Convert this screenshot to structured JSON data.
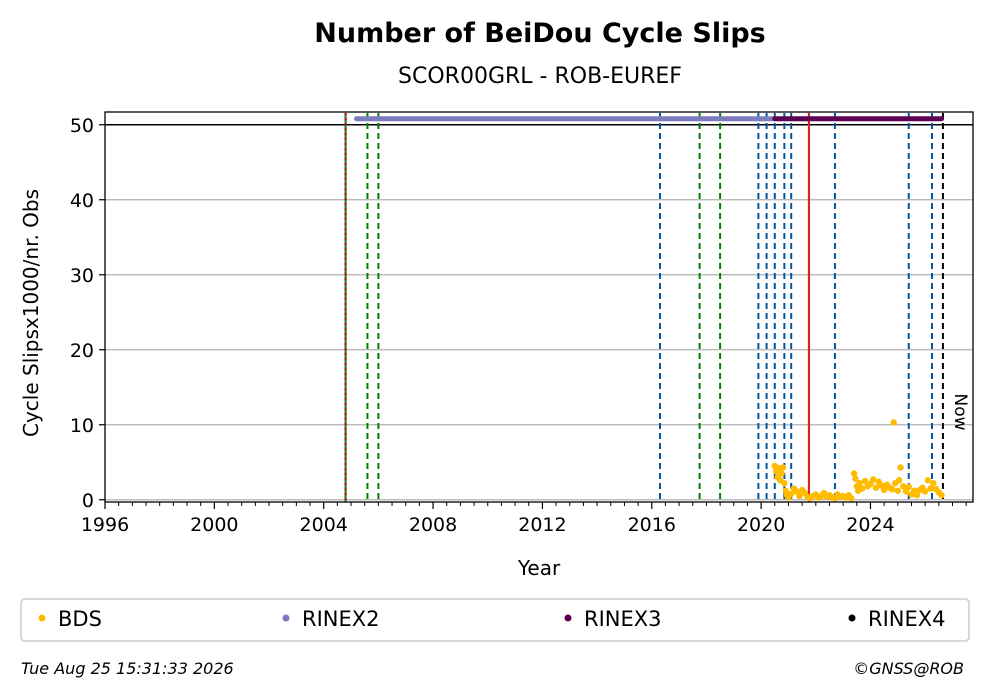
{
  "chart_data": {
    "type": "scatter",
    "title": "Number of BeiDou Cycle Slips",
    "subtitle": "SCOR00GRL - ROB-EUREF",
    "xlabel": "Year",
    "ylabel": "Cycle Slipsx1000/nr. Obs",
    "xlim": [
      1996.0,
      2027.75
    ],
    "ylim": [
      -0.3,
      51.7
    ],
    "x_ticks": [
      1996,
      2000,
      2004,
      2008,
      2012,
      2016,
      2020,
      2024
    ],
    "y_ticks": [
      0,
      10,
      20,
      30,
      40,
      50
    ],
    "grid": "horizontal",
    "reference_line_y": 50,
    "rinex_bars": [
      {
        "name": "RINEX2",
        "x_start": 2005.2,
        "x_end": 2020.5,
        "y": 50.8,
        "color": "#7b7bbd"
      },
      {
        "name": "RINEX3",
        "x_start": 2020.5,
        "x_end": 2026.6,
        "y": 50.8,
        "color": "#5c0054"
      }
    ],
    "event_lines": [
      {
        "x": 2004.8,
        "color": "#2e7d32",
        "style": "solid"
      },
      {
        "x": 2004.8,
        "color": "#cc0000",
        "style": "dotted"
      },
      {
        "x": 2005.6,
        "color": "#008000",
        "style": "dashed"
      },
      {
        "x": 2006.0,
        "color": "#008000",
        "style": "dashed"
      },
      {
        "x": 2016.3,
        "color": "#0055a5",
        "style": "dashed"
      },
      {
        "x": 2017.75,
        "color": "#008000",
        "style": "dashed"
      },
      {
        "x": 2018.5,
        "color": "#008000",
        "style": "dashed"
      },
      {
        "x": 2019.9,
        "color": "#0055a5",
        "style": "dashed"
      },
      {
        "x": 2020.2,
        "color": "#0055a5",
        "style": "dashed"
      },
      {
        "x": 2020.5,
        "color": "#0055a5",
        "style": "dashed"
      },
      {
        "x": 2020.85,
        "color": "#0055a5",
        "style": "dashed"
      },
      {
        "x": 2021.1,
        "color": "#0055a5",
        "style": "dashed"
      },
      {
        "x": 2021.75,
        "color": "#dd2222",
        "style": "solid"
      },
      {
        "x": 2022.7,
        "color": "#0055a5",
        "style": "dashed"
      },
      {
        "x": 2025.4,
        "color": "#0055a5",
        "style": "dashed"
      },
      {
        "x": 2026.25,
        "color": "#0055a5",
        "style": "dashed"
      },
      {
        "x": 2026.65,
        "color": "#000000",
        "style": "dashed"
      }
    ],
    "now_label": "Now",
    "now_x": 2026.65,
    "series": [
      {
        "name": "BDS",
        "color": "#ffbb00",
        "points": [
          [
            2020.5,
            4.5
          ],
          [
            2020.55,
            3.8
          ],
          [
            2020.6,
            3.0
          ],
          [
            2020.65,
            4.2
          ],
          [
            2020.7,
            2.6
          ],
          [
            2020.75,
            3.5
          ],
          [
            2020.8,
            4.3
          ],
          [
            2020.85,
            2.2
          ],
          [
            2020.9,
            1.2
          ],
          [
            2020.95,
            0.6
          ],
          [
            2021.0,
            0.3
          ],
          [
            2021.1,
            0.8
          ],
          [
            2021.2,
            1.5
          ],
          [
            2021.3,
            1.1
          ],
          [
            2021.4,
            0.5
          ],
          [
            2021.5,
            1.3
          ],
          [
            2021.6,
            0.9
          ],
          [
            2021.7,
            0.4
          ],
          [
            2021.8,
            0.2
          ],
          [
            2021.9,
            0.5
          ],
          [
            2022.0,
            0.7
          ],
          [
            2022.1,
            0.3
          ],
          [
            2022.2,
            0.5
          ],
          [
            2022.3,
            0.9
          ],
          [
            2022.4,
            0.4
          ],
          [
            2022.5,
            0.6
          ],
          [
            2022.6,
            0.3
          ],
          [
            2022.7,
            0.2
          ],
          [
            2022.8,
            0.7
          ],
          [
            2022.9,
            0.4
          ],
          [
            2023.0,
            0.5
          ],
          [
            2023.1,
            0.3
          ],
          [
            2023.2,
            0.6
          ],
          [
            2023.3,
            0.2
          ],
          [
            2023.4,
            3.5
          ],
          [
            2023.45,
            2.8
          ],
          [
            2023.5,
            1.8
          ],
          [
            2023.55,
            1.2
          ],
          [
            2023.6,
            2.2
          ],
          [
            2023.7,
            1.5
          ],
          [
            2023.8,
            2.5
          ],
          [
            2023.9,
            1.8
          ],
          [
            2024.0,
            2.1
          ],
          [
            2024.1,
            2.7
          ],
          [
            2024.2,
            1.6
          ],
          [
            2024.3,
            2.4
          ],
          [
            2024.4,
            1.9
          ],
          [
            2024.5,
            1.3
          ],
          [
            2024.6,
            2.0
          ],
          [
            2024.7,
            1.6
          ],
          [
            2024.8,
            1.4
          ],
          [
            2024.85,
            10.3
          ],
          [
            2024.9,
            2.2
          ],
          [
            2025.0,
            1.2
          ],
          [
            2025.05,
            2.6
          ],
          [
            2025.1,
            4.3
          ],
          [
            2025.2,
            1.8
          ],
          [
            2025.3,
            1.1
          ],
          [
            2025.4,
            1.7
          ],
          [
            2025.5,
            0.7
          ],
          [
            2025.6,
            1.2
          ],
          [
            2025.7,
            0.6
          ],
          [
            2025.8,
            1.3
          ],
          [
            2025.9,
            1.6
          ],
          [
            2026.0,
            1.1
          ],
          [
            2026.1,
            2.6
          ],
          [
            2026.2,
            1.5
          ],
          [
            2026.3,
            2.2
          ],
          [
            2026.4,
            1.4
          ],
          [
            2026.5,
            1.0
          ],
          [
            2026.6,
            0.6
          ]
        ]
      },
      {
        "name": "RINEX2",
        "color": "#7b7bbd",
        "points": []
      },
      {
        "name": "RINEX3",
        "color": "#5c0054",
        "points": []
      },
      {
        "name": "RINEX4",
        "color": "#000000",
        "points": []
      }
    ]
  },
  "footer": {
    "timestamp": "Tue Aug 25 15:31:33 2026",
    "copyright": "©GNSS@ROB"
  }
}
